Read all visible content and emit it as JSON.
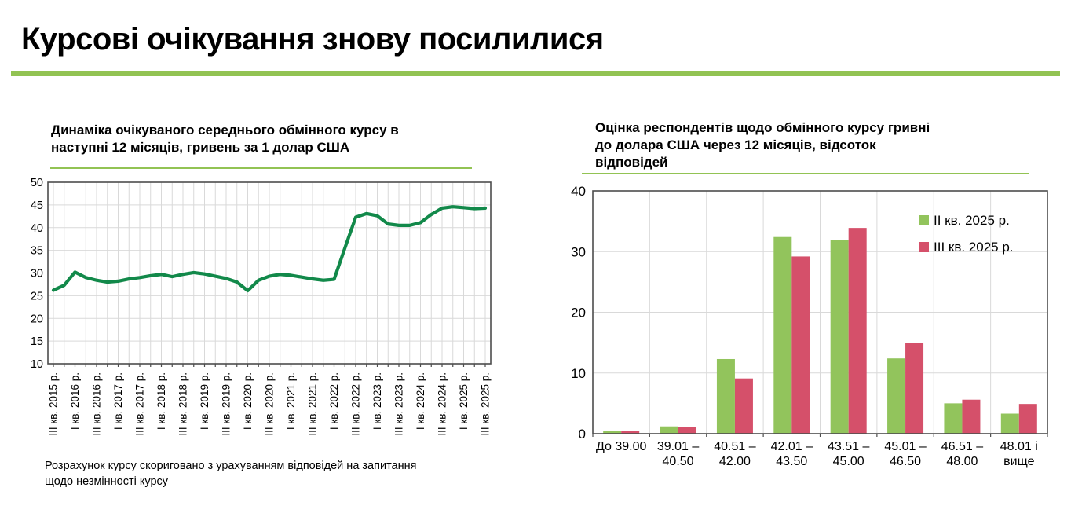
{
  "page": {
    "title": "Курсові очікування знову посилилися"
  },
  "colors": {
    "accent_green": "#92c353",
    "line_green": "#12894a",
    "bar_green": "#92c45c",
    "bar_red": "#d5506a",
    "grid": "#d9d9d9",
    "axis_border": "#4d4d4d",
    "text": "#000000"
  },
  "left_chart": {
    "title": "Динаміка очікуваного середнього обмінного курсу в\nнаступні 12 місяців, гривень за 1 долар США",
    "footnote": "Розрахунок курсу скориговано з урахуванням відповідей на запитання\nщодо незмінності курсу"
  },
  "right_chart": {
    "title": "Оцінка респондентів щодо обмінного курсу гривні\nдо долара США через 12 місяців, відсоток\nвідповідей"
  },
  "chart_data": [
    {
      "type": "line",
      "title": "Динаміка очікуваного середнього обмінного курсу в наступні 12 місяців, гривень за 1 долар США",
      "ylim": [
        10,
        50
      ],
      "ytick_step": 5,
      "yticks": [
        10,
        15,
        20,
        25,
        30,
        35,
        40,
        45,
        50
      ],
      "grid": "both",
      "x_label_every": 2,
      "x_minor_ticks": "quarterly",
      "x_labels": [
        "III кв. 2015 р.",
        "I кв. 2016 р.",
        "III кв. 2016 р.",
        "I кв. 2017 р.",
        "III кв. 2017 р.",
        "I кв. 2018 р.",
        "III кв. 2018 р.",
        "I кв. 2019 р.",
        "III кв. 2019 р.",
        "I кв. 2020 р.",
        "III кв. 2020 р.",
        "I кв. 2021 р.",
        "III кв. 2021 р.",
        "I кв. 2022 р.",
        "III кв. 2022 р.",
        "I кв. 2023 р.",
        "III кв. 2023 р.",
        "I кв. 2024 р.",
        "III кв. 2024 р.",
        "I кв. 2025 р.",
        "III кв. 2025 р."
      ],
      "x_quarters": [
        "2015Q3",
        "2015Q4",
        "2016Q1",
        "2016Q2",
        "2016Q3",
        "2016Q4",
        "2017Q1",
        "2017Q2",
        "2017Q3",
        "2017Q4",
        "2018Q1",
        "2018Q2",
        "2018Q3",
        "2018Q4",
        "2019Q1",
        "2019Q2",
        "2019Q3",
        "2019Q4",
        "2020Q1",
        "2020Q2",
        "2020Q3",
        "2020Q4",
        "2021Q1",
        "2021Q2",
        "2021Q3",
        "2021Q4",
        "2022Q1",
        "2022Q2",
        "2022Q3",
        "2022Q4",
        "2023Q1",
        "2023Q2",
        "2023Q3",
        "2023Q4",
        "2024Q1",
        "2024Q2",
        "2024Q3",
        "2024Q4",
        "2025Q1",
        "2025Q2",
        "2025Q3"
      ],
      "values": [
        26.2,
        27.3,
        30.2,
        29.0,
        28.4,
        28.0,
        28.2,
        28.7,
        29.0,
        29.4,
        29.7,
        29.2,
        29.7,
        30.1,
        29.8,
        29.3,
        28.8,
        28.0,
        26.1,
        28.4,
        29.3,
        29.7,
        29.5,
        29.1,
        28.7,
        28.4,
        28.6,
        35.5,
        42.3,
        43.1,
        42.6,
        40.8,
        40.5,
        40.5,
        41.1,
        42.9,
        44.3,
        44.6,
        44.4,
        44.2,
        44.3
      ]
    },
    {
      "type": "bar",
      "title": "Оцінка респондентів щодо обмінного курсу гривні до долара США через 12 місяців, відсоток відповідей",
      "ylim": [
        0,
        40
      ],
      "ytick_step": 10,
      "yticks": [
        0,
        10,
        20,
        30,
        40
      ],
      "grid": "both",
      "legend_position": "top-right",
      "categories": [
        "До 39.00",
        "39.01 –\n40.50",
        "40.51 –\n42.00",
        "42.01 –\n43.50",
        "43.51 –\n45.00",
        "45.01 –\n46.50",
        "46.51 –\n48.00",
        "48.01 і\nвище"
      ],
      "series": [
        {
          "name": "II кв. 2025 р.",
          "color": "#92c45c",
          "values": [
            0.4,
            1.2,
            12.3,
            32.4,
            31.9,
            12.4,
            5.0,
            3.3
          ]
        },
        {
          "name": "III кв. 2025 р.",
          "color": "#d5506a",
          "values": [
            0.4,
            1.1,
            9.1,
            29.2,
            33.9,
            15.0,
            5.6,
            4.9
          ]
        }
      ]
    }
  ]
}
